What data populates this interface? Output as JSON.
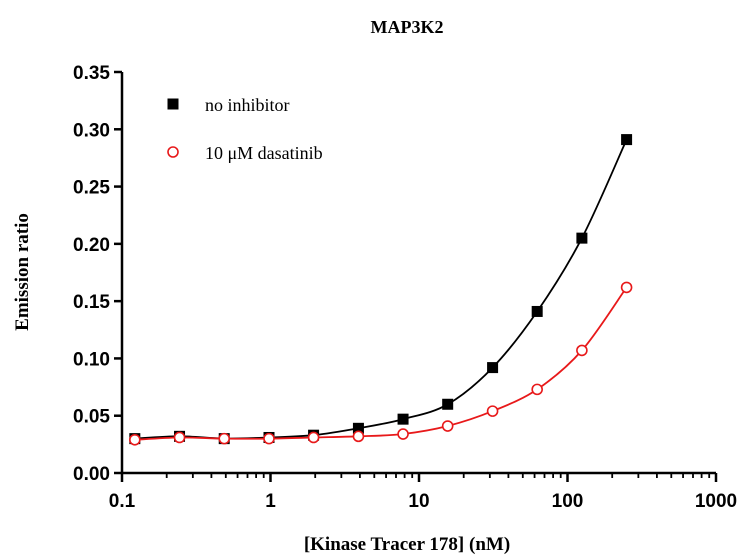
{
  "chart_data": {
    "type": "scatter",
    "title": "MAP3K2",
    "xlabel": "[Kinase Tracer 178] (nM)",
    "ylabel": "Emission ratio",
    "xscale": "log",
    "xlim": [
      0.1,
      1000
    ],
    "ylim": [
      0,
      0.35
    ],
    "x_tick_labels": [
      "0.1",
      "1",
      "10",
      "100",
      "1000"
    ],
    "y_tick_labels": [
      "0.00",
      "0.05",
      "0.10",
      "0.15",
      "0.20",
      "0.25",
      "0.30",
      "0.35"
    ],
    "legend_position": "top-left",
    "grid": false,
    "series": [
      {
        "name": "no inhibitor",
        "marker": "filled-square",
        "color": "#000000",
        "x": [
          0.122,
          0.244,
          0.488,
          0.977,
          1.95,
          3.91,
          7.81,
          15.6,
          31.3,
          62.5,
          125,
          250
        ],
        "y": [
          0.03,
          0.032,
          0.03,
          0.031,
          0.033,
          0.039,
          0.047,
          0.06,
          0.092,
          0.141,
          0.205,
          0.291
        ],
        "fit_curve": true
      },
      {
        "name": "10 μM dasatinib",
        "marker": "open-circle",
        "color": "#e8191a",
        "x": [
          0.122,
          0.244,
          0.488,
          0.977,
          1.95,
          3.91,
          7.81,
          15.6,
          31.3,
          62.5,
          125,
          250
        ],
        "y": [
          0.029,
          0.031,
          0.03,
          0.03,
          0.031,
          0.032,
          0.034,
          0.041,
          0.054,
          0.073,
          0.107,
          0.162
        ],
        "fit_curve": true
      }
    ]
  }
}
